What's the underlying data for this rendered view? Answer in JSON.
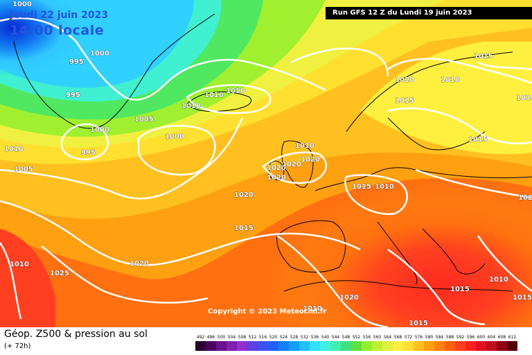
{
  "header": {
    "date": "Jeudi 22 juin 2023",
    "local_time": "14:00 locale",
    "run": "Run GFS 12 Z du Lundi 19 juin 2023"
  },
  "footer": {
    "field": "Géop. Z500 & pression au sol",
    "lead_time": "(+ 72h)",
    "copyright": "Copyright © 2023 Meteociel.fr"
  },
  "scale": {
    "values": [
      "492",
      "496",
      "500",
      "504",
      "508",
      "512",
      "516",
      "520",
      "524",
      "528",
      "532",
      "536",
      "540",
      "544",
      "548",
      "552",
      "556",
      "560",
      "564",
      "568",
      "572",
      "576",
      "580",
      "584",
      "588",
      "592",
      "596",
      "600",
      "604",
      "608",
      "612"
    ],
    "colors": [
      "#2a0030",
      "#4a0060",
      "#6a1090",
      "#8020b0",
      "#9030d0",
      "#6040e0",
      "#4050f0",
      "#2060ff",
      "#1080ff",
      "#10a0ff",
      "#20c0ff",
      "#30e0ff",
      "#40f0e0",
      "#40f0b0",
      "#40e080",
      "#60e040",
      "#90f030",
      "#c0f030",
      "#e0f040",
      "#fff040",
      "#ffe030",
      "#ffc020",
      "#ffa010",
      "#ff8010",
      "#ff6010",
      "#ff4020",
      "#ff2020",
      "#e01020",
      "#c01020",
      "#900010",
      "#500008"
    ]
  },
  "isobars": [
    "1000",
    "995",
    "1000",
    "995",
    "1000",
    "995",
    "1005",
    "1000",
    "1010",
    "1010",
    "1010",
    "1010",
    "1010",
    "1020",
    "1020",
    "1020",
    "1020",
    "1020",
    "1015",
    "1010",
    "1015",
    "1020",
    "1010",
    "1025",
    "1020",
    "1015",
    "1010",
    "1015",
    "1015",
    "1010",
    "1010",
    "1015",
    "1015",
    "1015",
    "1010",
    "1005",
    "1010",
    "1020"
  ],
  "colors": {
    "date_text": "#2255dd",
    "isobar": "#ffffff",
    "coast": "#000000",
    "run_bg": "#000000"
  }
}
